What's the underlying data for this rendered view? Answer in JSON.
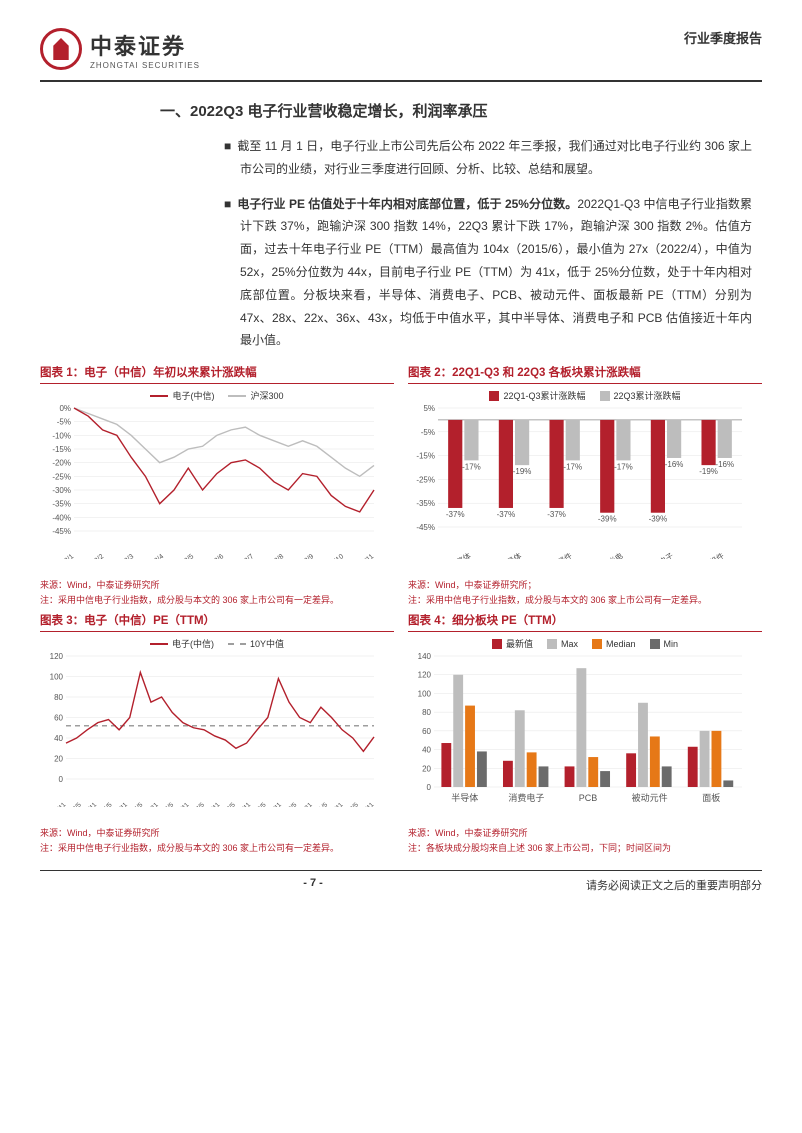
{
  "header": {
    "logo_cn": "中泰证券",
    "logo_en": "ZHONGTAI SECURITIES",
    "doc_type": "行业季度报告"
  },
  "section": {
    "title": "一、2022Q3 电子行业营收稳定增长，利润率承压",
    "para1": "截至 11 月 1 日，电子行业上市公司先后公布 2022 年三季报，我们通过对比电子行业约 306 家上市公司的业绩，对行业三季度进行回顾、分析、比较、总结和展望。",
    "para2_bold": "电子行业 PE 估值处于十年内相对底部位置，低于 25%分位数。",
    "para2_rest": "2022Q1-Q3 中信电子行业指数累计下跌 37%，跑输沪深 300 指数 14%，22Q3 累计下跌 17%，跑输沪深 300 指数 2%。估值方面，过去十年电子行业 PE（TTM）最高值为 104x（2015/6），最小值为 27x（2022/4），中值为 52x，25%分位数为 44x，目前电子行业 PE（TTM）为 41x，低于 25%分位数，处于十年内相对底部位置。分板块来看，半导体、消费电子、PCB、被动元件、面板最新 PE（TTM）分别为 47x、28x、22x、36x、43x，均低于中值水平，其中半导体、消费电子和 PCB 估值接近十年内最小值。"
  },
  "chart1": {
    "title": "图表 1：电子（中信）年初以来累计涨跌幅",
    "legend": [
      "电子(中信)",
      "沪深300"
    ],
    "legend_colors": [
      "#b3202c",
      "#bdbdbd"
    ],
    "y_ticks": [
      "0%",
      "-5%",
      "-10%",
      "-15%",
      "-20%",
      "-25%",
      "-30%",
      "-35%",
      "-40%",
      "-45%"
    ],
    "x_ticks": [
      "2022/1",
      "2022/2",
      "2022/3",
      "2022/4",
      "2022/5",
      "2022/6",
      "2022/7",
      "2022/8",
      "2022/9",
      "2022/10",
      "2022/11"
    ],
    "ylim": [
      -45,
      0
    ],
    "series": {
      "elec": [
        0,
        -3,
        -8,
        -10,
        -18,
        -25,
        -35,
        -30,
        -22,
        -30,
        -24,
        -20,
        -19,
        -22,
        -27,
        -30,
        -24,
        -25,
        -32,
        -36,
        -38,
        -30
      ],
      "csi": [
        0,
        -2,
        -4,
        -6,
        -10,
        -15,
        -20,
        -18,
        -15,
        -14,
        -10,
        -8,
        -7,
        -10,
        -12,
        -14,
        -12,
        -14,
        -18,
        -22,
        -25,
        -21
      ]
    },
    "source": "来源：Wind，中泰证券研究所",
    "note": "注：采用中信电子行业指数，成分股与本文的 306 家上市公司有一定差异。"
  },
  "chart2": {
    "title": "图表 2：22Q1-Q3 和 22Q3 各板块累计涨跌幅",
    "legend": [
      "22Q1-Q3累计涨跌幅",
      "22Q3累计涨跌幅"
    ],
    "legend_colors": [
      "#b3202c",
      "#bdbdbd"
    ],
    "y_ticks": [
      "5%",
      "-5%",
      "-15%",
      "-25%",
      "-35%",
      "-45%"
    ],
    "ylim": [
      -45,
      5
    ],
    "categories": [
      "电子整体",
      "半导体",
      "元器件",
      "光学光电",
      "消费电子",
      "其他电子零组件"
    ],
    "q1q3": [
      -37,
      -37,
      -37,
      -39,
      -39,
      -19
    ],
    "q3": [
      -17,
      -19,
      -17,
      -17,
      -16,
      -16
    ],
    "bar_colors": [
      "#b3202c",
      "#bdbdbd"
    ],
    "source": "来源：Wind，中泰证券研究所；",
    "note": "注：采用中信电子行业指数，成分股与本文的 306 家上市公司有一定差异。"
  },
  "chart3": {
    "title": "图表 3：电子（中信）PE（TTM）",
    "legend": [
      "电子(中信)",
      "10Y中值"
    ],
    "legend_colors": [
      "#b3202c",
      "#9e9e9e"
    ],
    "y_ticks": [
      "120",
      "100",
      "80",
      "60",
      "40",
      "20",
      "0"
    ],
    "x_ticks": [
      "2012/11",
      "2013/5",
      "2013/11",
      "2014/5",
      "2014/11",
      "2015/5",
      "2015/11",
      "2016/5",
      "2016/11",
      "2017/5",
      "2017/11",
      "2018/5",
      "2018/11",
      "2019/5",
      "2019/11",
      "2020/5",
      "2020/11",
      "2021/5",
      "2021/11",
      "2022/5",
      "2022/11"
    ],
    "ylim": [
      0,
      120
    ],
    "median": 52,
    "series": [
      35,
      40,
      48,
      55,
      58,
      48,
      60,
      104,
      75,
      80,
      65,
      55,
      50,
      48,
      42,
      38,
      30,
      35,
      48,
      60,
      98,
      75,
      60,
      55,
      70,
      60,
      48,
      40,
      27,
      41
    ],
    "source": "来源：Wind，中泰证券研究所",
    "note": "注：采用中信电子行业指数，成分股与本文的 306 家上市公司有一定差异。"
  },
  "chart4": {
    "title": "图表 4：细分板块 PE（TTM）",
    "legend": [
      "最新值",
      "Max",
      "Median",
      "Min"
    ],
    "legend_colors": [
      "#b3202c",
      "#bdbdbd",
      "#e67817",
      "#6b6b6b"
    ],
    "y_ticks": [
      "140",
      "120",
      "100",
      "80",
      "60",
      "40",
      "20",
      "0"
    ],
    "ylim": [
      0,
      140
    ],
    "categories": [
      "半导体",
      "消费电子",
      "PCB",
      "被动元件",
      "面板"
    ],
    "latest": [
      47,
      28,
      22,
      36,
      43
    ],
    "max": [
      120,
      82,
      127,
      90,
      60
    ],
    "median": [
      87,
      37,
      32,
      54,
      60
    ],
    "min": [
      38,
      22,
      17,
      22,
      7
    ],
    "source": "来源：Wind，中泰证券研究所",
    "note": "注：各板块成分股均来自上述 306 家上市公司，下同；时间区间为"
  },
  "footer": {
    "page": "- 7 -",
    "disclaimer": "请务必阅读正文之后的重要声明部分"
  }
}
